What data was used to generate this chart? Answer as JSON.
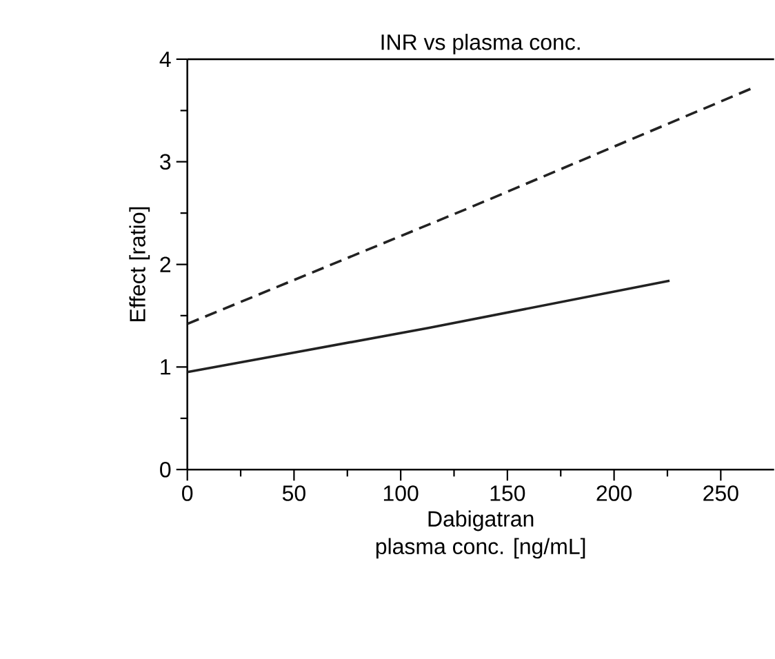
{
  "chart_data": {
    "type": "line",
    "title": "INR vs plasma conc.",
    "xlabel": "Dabigatran\nplasma conc. [ng/mL]",
    "ylabel": "Effect [ratio]",
    "xlim": [
      0,
      275
    ],
    "ylim": [
      0,
      4
    ],
    "xticks": [
      0,
      50,
      100,
      150,
      200,
      250
    ],
    "yticks": [
      0,
      1,
      2,
      3,
      4
    ],
    "marker": "none",
    "series": [
      {
        "color": "#222222",
        "line_style": "solid",
        "x": [
          0,
          113,
          226
        ],
        "values": [
          0.95,
          1.38,
          1.84
        ]
      },
      {
        "color": "#222222",
        "line_style": "dashed",
        "x": [
          0,
          132,
          265
        ],
        "values": [
          1.42,
          2.55,
          3.72
        ]
      }
    ]
  }
}
